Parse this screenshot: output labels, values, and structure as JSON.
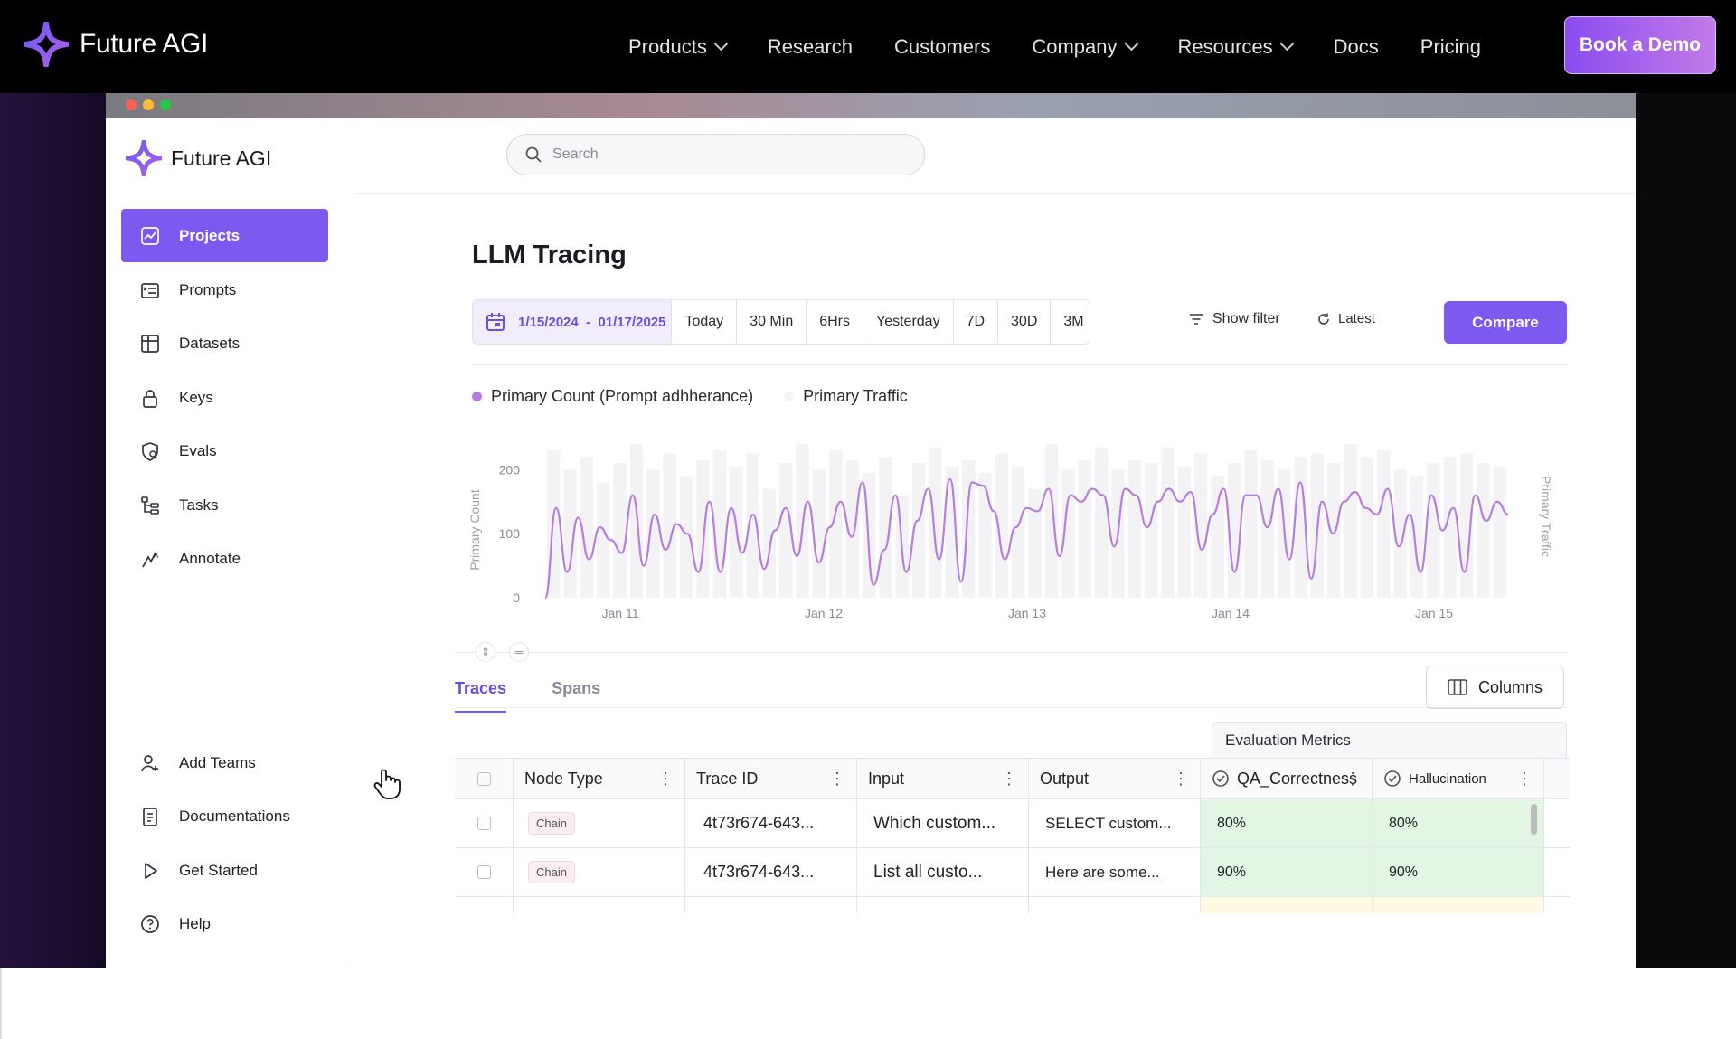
{
  "topnav": {
    "brand": "Future AGI",
    "items": [
      {
        "label": "Products",
        "dropdown": true
      },
      {
        "label": "Research",
        "dropdown": false
      },
      {
        "label": "Customers",
        "dropdown": false
      },
      {
        "label": "Company",
        "dropdown": true
      },
      {
        "label": "Resources",
        "dropdown": true
      },
      {
        "label": "Docs",
        "dropdown": false
      },
      {
        "label": "Pricing",
        "dropdown": false
      }
    ],
    "cta": "Book a Demo"
  },
  "sidebar": {
    "brand": "Future AGI",
    "items": [
      {
        "label": "Projects",
        "icon": "chart-icon",
        "active": true
      },
      {
        "label": "Prompts",
        "icon": "prompt-icon",
        "active": false
      },
      {
        "label": "Datasets",
        "icon": "table-icon",
        "active": false
      },
      {
        "label": "Keys",
        "icon": "lock-icon",
        "active": false
      },
      {
        "label": "Evals",
        "icon": "eval-icon",
        "active": false
      },
      {
        "label": "Tasks",
        "icon": "tasks-icon",
        "active": false
      },
      {
        "label": "Annotate",
        "icon": "annotate-icon",
        "active": false
      }
    ],
    "bottom_items": [
      {
        "label": "Add Teams",
        "icon": "add-user-icon"
      },
      {
        "label": "Documentations",
        "icon": "document-icon"
      },
      {
        "label": "Get Started",
        "icon": "play-icon"
      },
      {
        "label": "Help",
        "icon": "help-icon"
      }
    ]
  },
  "search": {
    "placeholder": "Search"
  },
  "page": {
    "title": "LLM Tracing",
    "date_range": "1/15/2024  -  01/17/2025",
    "ranges": [
      "Today",
      "30 Min",
      "6Hrs",
      "Yesterday",
      "7D",
      "30D",
      "3M"
    ],
    "show_filter": "Show filter",
    "latest": "Latest",
    "compare": "Compare"
  },
  "legend": {
    "series1": "Primary Count (Prompt adhherance)",
    "series2": "Primary Traffic"
  },
  "chart_data": {
    "type": "line",
    "ylabel": "Primary Count",
    "y2label": "Primary Traffic",
    "yticks": [
      "200",
      "100",
      "0"
    ],
    "ylim": [
      0,
      240
    ],
    "xticks": [
      "Jan 11",
      "Jan 12",
      "Jan 13",
      "Jan 14",
      "Jan 15"
    ],
    "line_color": "#b77fdc",
    "bar_color": "#f3f3f6",
    "series": [
      {
        "name": "Primary Count (Prompt adhherance)",
        "values": [
          0,
          140,
          40,
          125,
          60,
          110,
          90,
          70,
          160,
          50,
          130,
          75,
          115,
          100,
          40,
          150,
          40,
          140,
          70,
          130,
          45,
          105,
          140,
          65,
          150,
          55,
          110,
          150,
          95,
          180,
          20,
          75,
          160,
          40,
          120,
          170,
          60,
          185,
          25,
          180,
          175,
          135,
          60,
          110,
          140,
          135,
          170,
          65,
          160,
          150,
          170,
          160,
          80,
          170,
          160,
          110,
          150,
          170,
          150,
          165,
          75,
          130,
          170,
          40,
          160,
          160,
          110,
          170,
          60,
          180,
          30,
          150,
          100,
          150,
          165,
          140,
          130,
          170,
          80,
          130,
          40,
          160,
          105,
          140,
          40,
          160,
          120,
          150,
          130
        ]
      },
      {
        "name": "Primary Traffic",
        "values": [
          230,
          200,
          220,
          180,
          210,
          240,
          200,
          225,
          190,
          215,
          230,
          205,
          225,
          170,
          210,
          240,
          200,
          230,
          215,
          195,
          220,
          160,
          210,
          235,
          205,
          215,
          195,
          225,
          205,
          170,
          240,
          200,
          215,
          235,
          200,
          215,
          210,
          235,
          205,
          225,
          190,
          210,
          230,
          215,
          200,
          220,
          225,
          210,
          240,
          220,
          230,
          200,
          190,
          210,
          220,
          225,
          210,
          205
        ]
      }
    ]
  },
  "tabs": [
    "Traces",
    "Spans"
  ],
  "columns_button": "Columns",
  "eval_header": "Evaluation Metrics",
  "table": {
    "headers": [
      "Node Type",
      "Trace ID",
      "Input",
      "Output",
      "QA_Correctness",
      "Hallucination"
    ],
    "rows": [
      {
        "node": "Chain",
        "trace": "4t73r674-643...",
        "input": "Which custom...",
        "output": "SELECT custom...",
        "qa": "80%",
        "hall": "80%"
      },
      {
        "node": "Chain",
        "trace": "4t73r674-643...",
        "input": "List all custo...",
        "output": "Here are some...",
        "qa": "90%",
        "hall": "90%"
      }
    ]
  }
}
